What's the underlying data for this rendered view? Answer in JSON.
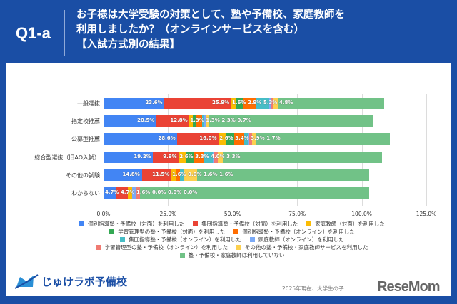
{
  "header": {
    "question_id": "Q1-a",
    "title": "お子様は大学受験の対策として、塾や予備校、家庭教師を\n利用しましたか？（オンラインサービスを含む）\n【入試方式別の結果】"
  },
  "chart_data": {
    "type": "bar",
    "orientation": "horizontal",
    "stacked": true,
    "categories": [
      "一般選抜",
      "指定校推薦",
      "公募型推薦",
      "総合型選抜（旧AO入試）",
      "その他の試験",
      "わからない"
    ],
    "xlim": [
      0,
      125
    ],
    "x_ticks": [
      "0.0%",
      "25.0%",
      "50.0%",
      "75.0%",
      "100.0%",
      "125.0%"
    ],
    "grid": true,
    "legend": "bottom",
    "series": [
      {
        "name": "個別指導塾・予備校（対面）を利用した",
        "color": "#4285f4",
        "values": [
          23.6,
          20.5,
          28.6,
          19.2,
          14.8,
          4.7
        ]
      },
      {
        "name": "集団指導塾・予備校（対面）を利用した",
        "color": "#ea4335",
        "values": [
          25.9,
          12.8,
          16.0,
          9.9,
          11.5,
          4.7
        ]
      },
      {
        "name": "家庭教師（対面）を利用した",
        "color": "#fbbc04",
        "values": [
          1.6,
          1.3,
          2.6,
          2.6,
          1.6,
          1.6
        ]
      },
      {
        "name": "学習管理型の塾・予備校（対面）を利用した",
        "color": "#34a853",
        "values": [
          2.9,
          1.3,
          3.4,
          3.3,
          0.0,
          0.0
        ]
      },
      {
        "name": "個別指導塾・予備校（オンライン）を利用した",
        "color": "#ff6d01",
        "values": [
          5.3,
          2.3,
          3.9,
          4.0,
          1.6,
          0.0
        ]
      },
      {
        "name": "集団指導塾・予備校（オンライン）を利用した",
        "color": "#46bdc6",
        "values": [
          4.8,
          0.7,
          1.7,
          3.3,
          1.6,
          0.0
        ]
      },
      {
        "name": "家庭教師（オンライン）を利用した",
        "color": "#7baaf7",
        "values": [
          1.0,
          0.7,
          0.3,
          0.7,
          0.0,
          1.6
        ]
      },
      {
        "name": "学習管理型の塾・予備校（オンライン）を利用した",
        "color": "#f07b72",
        "values": [
          0.8,
          0.3,
          1.0,
          1.3,
          0.0,
          1.6
        ]
      },
      {
        "name": "その他の塾・予備校・家庭教師サービスを利用した",
        "color": "#fcd04f",
        "values": [
          1.5,
          0.7,
          1.7,
          2.0,
          5.0,
          0.0
        ]
      },
      {
        "name": "塾・予備校・家庭教師は利用していない",
        "color": "#71c287",
        "values": [
          41.4,
          63.7,
          51.6,
          61.6,
          66.9,
          88.6
        ]
      }
    ],
    "data_labels": [
      [
        "23.6%",
        "25.9%",
        "1.6%",
        "2.9%",
        "5.3%",
        "4.8%"
      ],
      [
        "20.5%",
        "12.8%",
        "1.3%",
        "1.3%",
        "2.3%",
        "0.7%"
      ],
      [
        "28.6%",
        "16.0%",
        "2.6%",
        "3.4%",
        "3.9%",
        "1.7%"
      ],
      [
        "19.2%",
        "9.9%",
        "2.6%",
        "3.3%",
        "4.0%",
        "3.3%"
      ],
      [
        "14.8%",
        "11.5%",
        "1.6%",
        "0.0%",
        "1.6%",
        "1.6%"
      ],
      [
        "4.7%",
        "4.7%",
        "1.6%",
        "0.0%",
        "0.0%",
        "0.0%"
      ]
    ]
  },
  "footer": {
    "logo_text": "じゅけラボ予備校",
    "note": "2025年現在、大学生の子",
    "watermark": "ReseMom"
  }
}
